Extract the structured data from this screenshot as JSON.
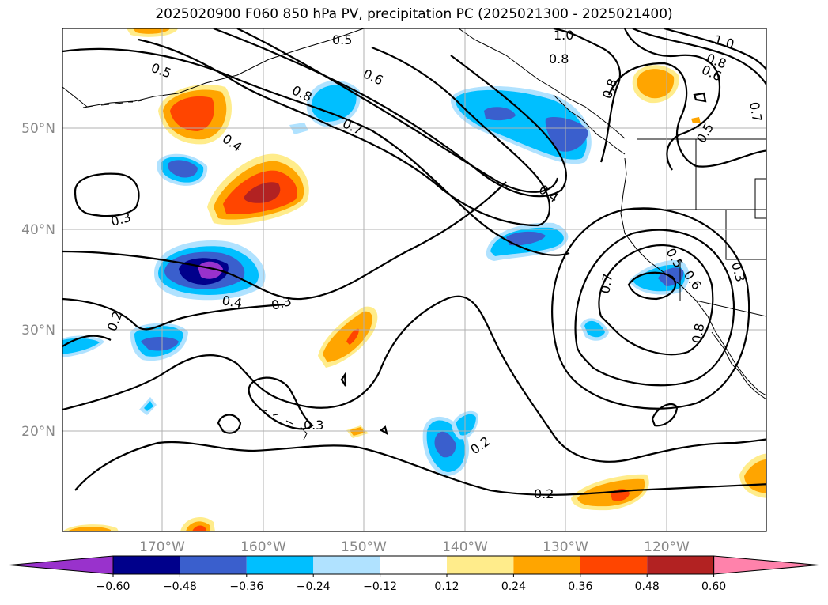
{
  "title": "2025020900 F060 850 hPa PV, precipitation PC (2025021300 - 2025021400)",
  "axes": {
    "lat_labels": [
      "50°N",
      "40°N",
      "30°N",
      "20°N"
    ],
    "lon_labels": [
      "170°W",
      "160°W",
      "150°W",
      "140°W",
      "130°W",
      "120°W"
    ]
  },
  "contour_labels": [
    "0.5",
    "0.5",
    "0.6",
    "0.8",
    "0.7",
    "0.4",
    "0.4",
    "1.0",
    "0.8",
    "0.8",
    "1.0",
    "0.8",
    "0.6",
    "0.7",
    "0.5",
    "0.3",
    "0.4",
    "0.3",
    "0.2",
    "0.3",
    "0.2",
    "0.2",
    "0.7",
    "0.5",
    "0.6",
    "0.8",
    "0.3"
  ],
  "colorbar": {
    "ticks": [
      "−0.60",
      "−0.48",
      "−0.36",
      "−0.24",
      "−0.12",
      "0.12",
      "0.24",
      "0.36",
      "0.48",
      "0.60"
    ],
    "colors": [
      "#9932cc",
      "#00008b",
      "#3a5fcd",
      "#00bfff",
      "#b0e2ff",
      "#ffffff",
      "#ffec8b",
      "#ffa500",
      "#ff4500",
      "#b22222",
      "#ff82ab"
    ]
  }
}
